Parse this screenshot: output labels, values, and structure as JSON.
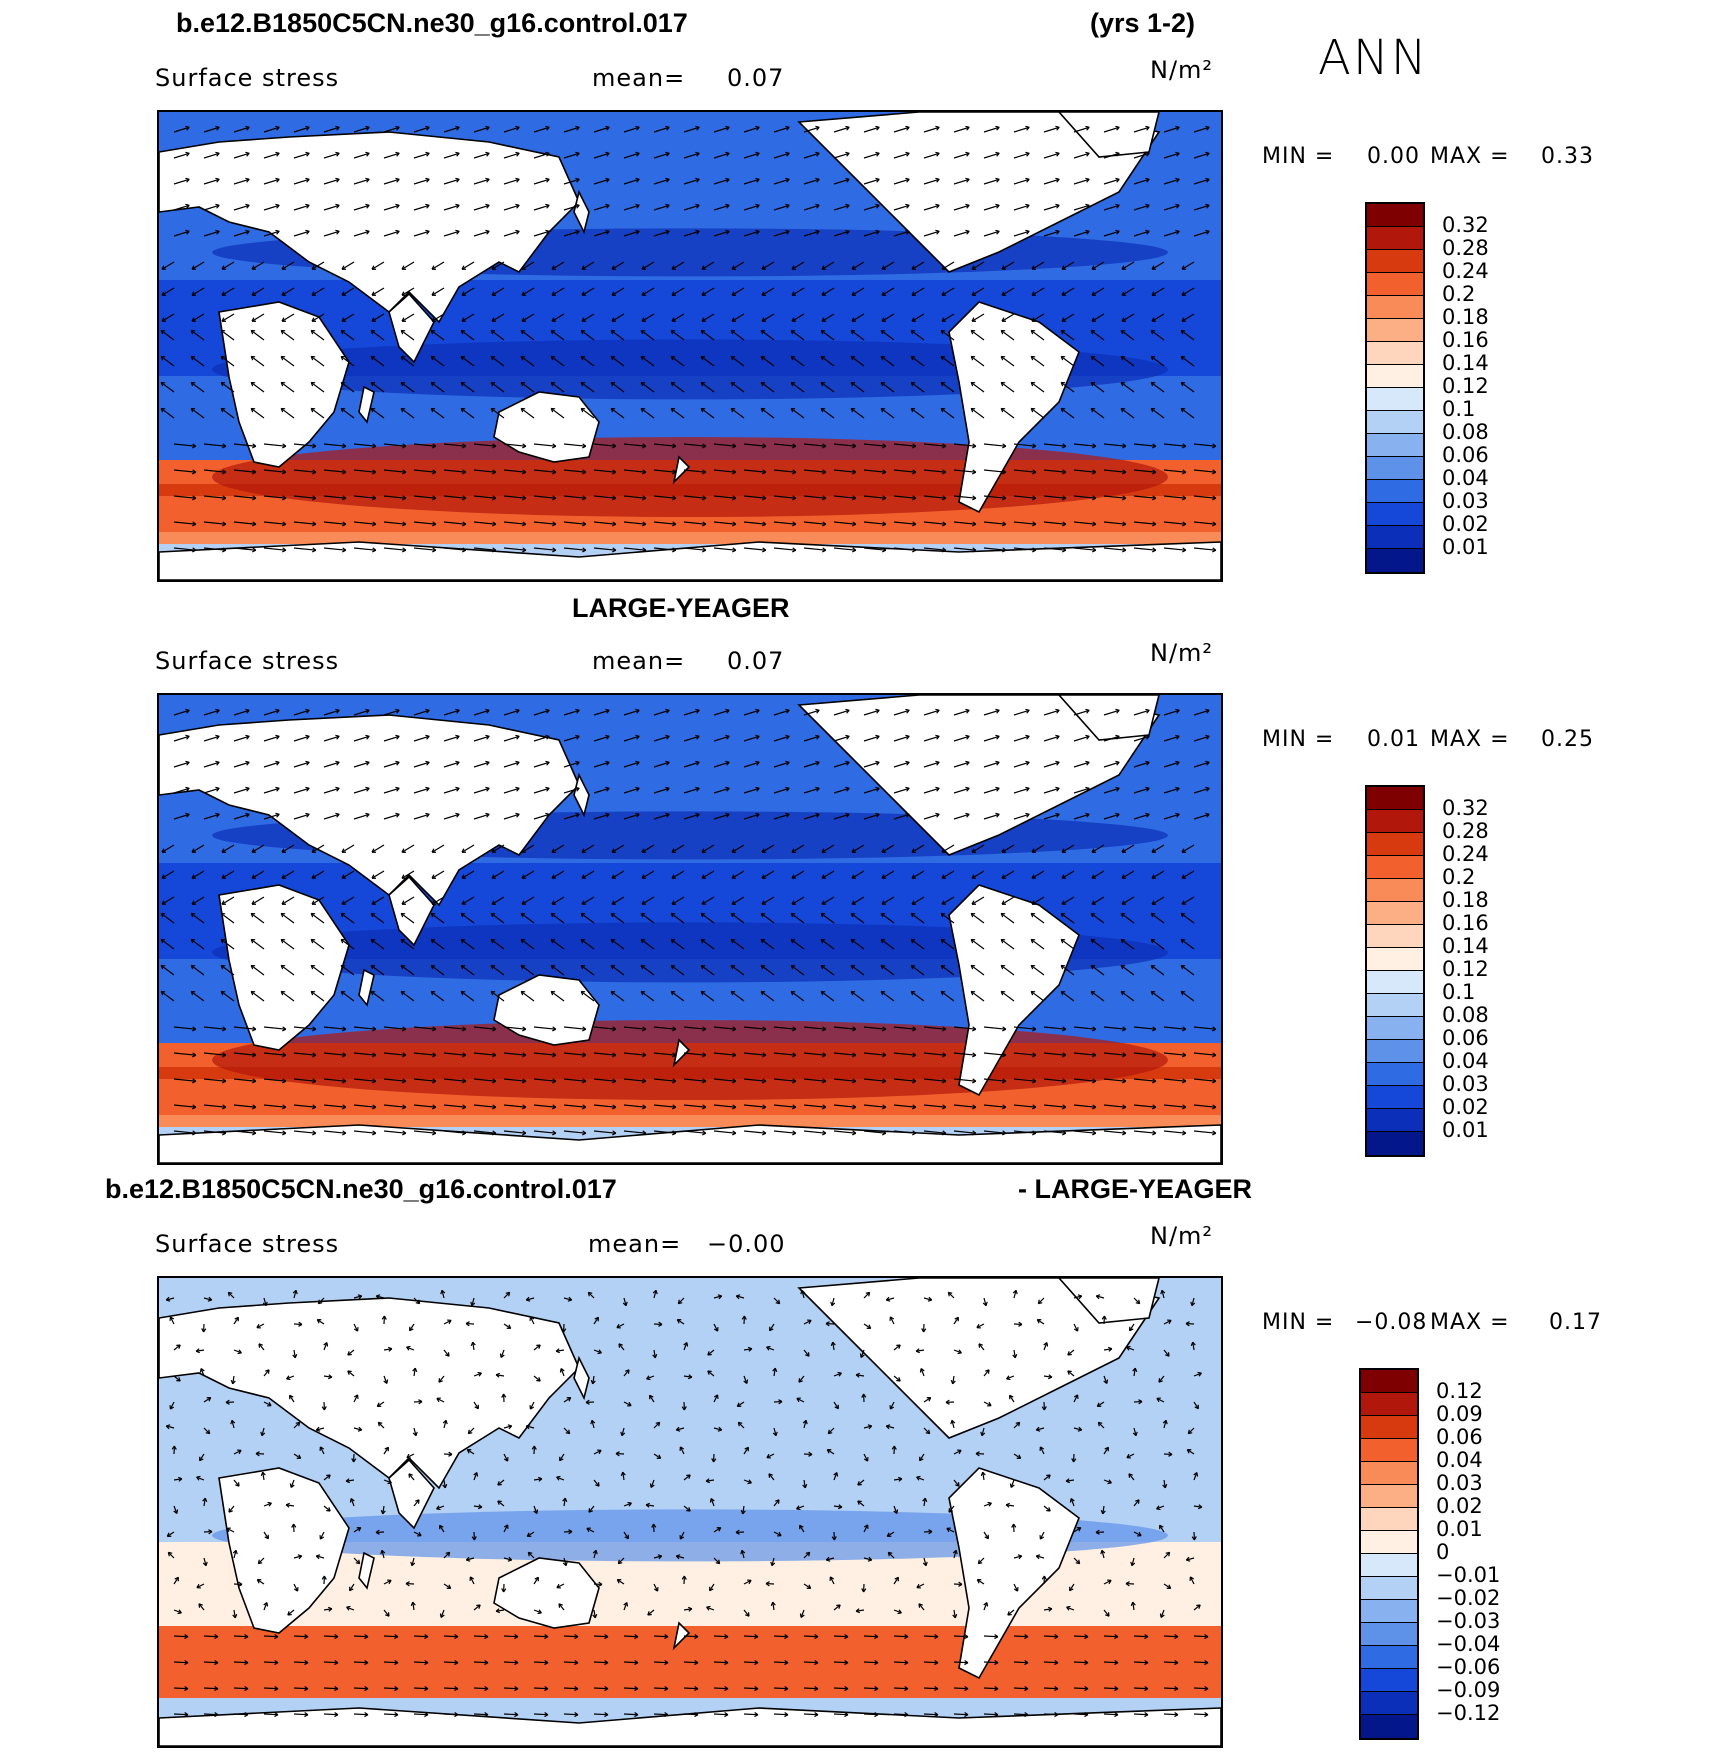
{
  "annual_label": "ANN",
  "panels": [
    {
      "title_left": "b.e12.B1850C5CN.ne30_g16.control.017",
      "title_right": "(yrs 1-2)",
      "variable": "Surface stress",
      "mean_label": "mean=",
      "mean_value": "0.07",
      "units": "N/m²",
      "min_label": "MIN =",
      "min_value": "0.00",
      "max_label": "MAX =",
      "max_value": "0.33",
      "colorbar_labels": [
        "0.32",
        "0.28",
        "0.24",
        "0.2",
        "0.18",
        "0.16",
        "0.14",
        "0.12",
        "0.1",
        "0.08",
        "0.06",
        "0.04",
        "0.03",
        "0.02",
        "0.01"
      ],
      "colorbar_colors": [
        "#7f0000",
        "#b2170b",
        "#d83a0f",
        "#f2612d",
        "#f98b58",
        "#fcae84",
        "#fdd6bd",
        "#fff0e3",
        "#d6e8fa",
        "#b3d0f5",
        "#88b2ef",
        "#5e91e8",
        "#2f6be3",
        "#1548d8",
        "#0b2fb8",
        "#03178a"
      ]
    },
    {
      "title_left": "LARGE-YEAGER",
      "variable": "Surface stress",
      "mean_label": "mean=",
      "mean_value": "0.07",
      "units": "N/m²",
      "min_label": "MIN =",
      "min_value": "0.01",
      "max_label": "MAX =",
      "max_value": "0.25",
      "colorbar_labels": [
        "0.32",
        "0.28",
        "0.24",
        "0.2",
        "0.18",
        "0.16",
        "0.14",
        "0.12",
        "0.1",
        "0.08",
        "0.06",
        "0.04",
        "0.03",
        "0.02",
        "0.01"
      ],
      "colorbar_colors": [
        "#7f0000",
        "#b2170b",
        "#d83a0f",
        "#f2612d",
        "#f98b58",
        "#fcae84",
        "#fdd6bd",
        "#fff0e3",
        "#d6e8fa",
        "#b3d0f5",
        "#88b2ef",
        "#5e91e8",
        "#2f6be3",
        "#1548d8",
        "#0b2fb8",
        "#03178a"
      ]
    },
    {
      "title_left": "b.e12.B1850C5CN.ne30_g16.control.017",
      "title_right": "- LARGE-YEAGER",
      "variable": "Surface stress",
      "mean_label": "mean=",
      "mean_value": "−0.00",
      "units": "N/m²",
      "min_label": "MIN =",
      "min_value": "−0.08",
      "max_label": "MAX =",
      "max_value": "0.17",
      "colorbar_labels": [
        "0.12",
        "0.09",
        "0.06",
        "0.04",
        "0.03",
        "0.02",
        "0.01",
        "0",
        "−0.01",
        "−0.02",
        "−0.03",
        "−0.04",
        "−0.06",
        "−0.09",
        "−0.12"
      ],
      "colorbar_colors": [
        "#7f0000",
        "#b2170b",
        "#d83a0f",
        "#f2612d",
        "#f98b58",
        "#fcae84",
        "#fdd6bd",
        "#fff0e3",
        "#d6e8fa",
        "#b3d0f5",
        "#88b2ef",
        "#5e91e8",
        "#2f6be3",
        "#1548d8",
        "#0b2fb8",
        "#03178a"
      ]
    }
  ]
}
